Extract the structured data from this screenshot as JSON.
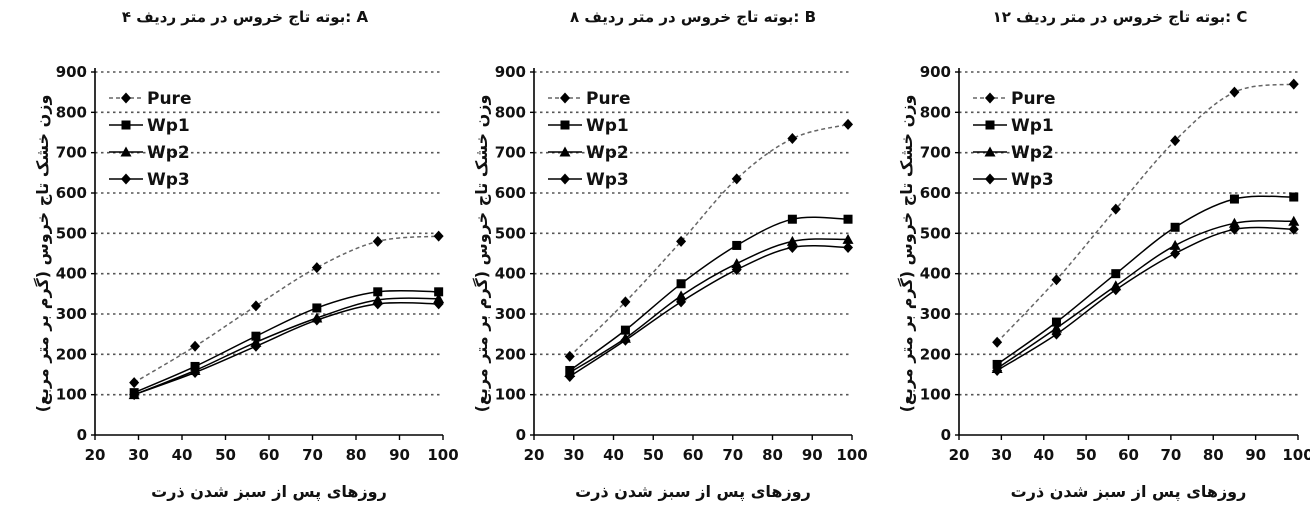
{
  "chart_data": [
    {
      "type": "line",
      "title": "۴ بوته تاج خروس در متر ردیف: A",
      "xlabel": "روزهای پس از سبز شدن ذرت",
      "ylabel": "وزن خشک تاج خروس (گرم بر متر مربع)",
      "xlim": [
        20,
        100
      ],
      "ylim": [
        0,
        900
      ],
      "xticks": [
        20,
        30,
        40,
        50,
        60,
        70,
        80,
        90,
        100
      ],
      "yticks": [
        0,
        100,
        200,
        300,
        400,
        500,
        600,
        700,
        800,
        900
      ],
      "grid": "horizontal-dotted",
      "legend": "top-left",
      "x": [
        29,
        43,
        57,
        71,
        85,
        99
      ],
      "series": [
        {
          "name": "Pure",
          "values": [
            130,
            220,
            320,
            415,
            480,
            493
          ],
          "marker": "diamond",
          "dashed": true
        },
        {
          "name": "Wp1",
          "values": [
            105,
            170,
            245,
            315,
            355,
            355
          ],
          "marker": "square",
          "dashed": false
        },
        {
          "name": "Wp2",
          "values": [
            100,
            160,
            230,
            290,
            335,
            338
          ],
          "marker": "triangle",
          "dashed": false
        },
        {
          "name": "Wp3",
          "values": [
            100,
            155,
            220,
            285,
            325,
            325
          ],
          "marker": "diamond",
          "dashed": false
        }
      ]
    },
    {
      "type": "line",
      "title": "۸ بوته تاج خروس در متر ردیف: B",
      "xlabel": "روزهای پس از سبز شدن ذرت",
      "ylabel": "وزن خشک تاج خروس (گرم بر متر مربع)",
      "xlim": [
        20,
        100
      ],
      "ylim": [
        0,
        900
      ],
      "xticks": [
        20,
        30,
        40,
        50,
        60,
        70,
        80,
        90,
        100
      ],
      "yticks": [
        0,
        100,
        200,
        300,
        400,
        500,
        600,
        700,
        800,
        900
      ],
      "grid": "horizontal-dotted",
      "legend": "top-left",
      "x": [
        29,
        43,
        57,
        71,
        85,
        99
      ],
      "series": [
        {
          "name": "Pure",
          "values": [
            195,
            330,
            480,
            635,
            735,
            770
          ],
          "marker": "diamond",
          "dashed": true
        },
        {
          "name": "Wp1",
          "values": [
            160,
            260,
            375,
            470,
            535,
            535
          ],
          "marker": "square",
          "dashed": false
        },
        {
          "name": "Wp2",
          "values": [
            155,
            240,
            345,
            425,
            480,
            485
          ],
          "marker": "triangle",
          "dashed": false
        },
        {
          "name": "Wp3",
          "values": [
            145,
            235,
            330,
            410,
            465,
            465
          ],
          "marker": "diamond",
          "dashed": false
        }
      ]
    },
    {
      "type": "line",
      "title": "۱۲ بوته تاج خروس در متر ردیف: C",
      "xlabel": "روزهای پس از سبز شدن ذرت",
      "ylabel": "وزن خشک تاج خروس (گرم بر متر مربع)",
      "xlim": [
        20,
        100
      ],
      "ylim": [
        0,
        900
      ],
      "xticks": [
        20,
        30,
        40,
        50,
        60,
        70,
        80,
        90,
        100
      ],
      "yticks": [
        0,
        100,
        200,
        300,
        400,
        500,
        600,
        700,
        800,
        900
      ],
      "grid": "horizontal-dotted",
      "legend": "top-left",
      "x": [
        29,
        43,
        57,
        71,
        85,
        99
      ],
      "series": [
        {
          "name": "Pure",
          "values": [
            230,
            385,
            560,
            730,
            850,
            870
          ],
          "marker": "diamond",
          "dashed": true
        },
        {
          "name": "Wp1",
          "values": [
            175,
            280,
            400,
            515,
            585,
            590
          ],
          "marker": "square",
          "dashed": false
        },
        {
          "name": "Wp2",
          "values": [
            165,
            265,
            370,
            470,
            525,
            530
          ],
          "marker": "triangle",
          "dashed": false
        },
        {
          "name": "Wp3",
          "values": [
            160,
            250,
            360,
            450,
            510,
            510
          ],
          "marker": "diamond",
          "dashed": false
        }
      ]
    }
  ]
}
